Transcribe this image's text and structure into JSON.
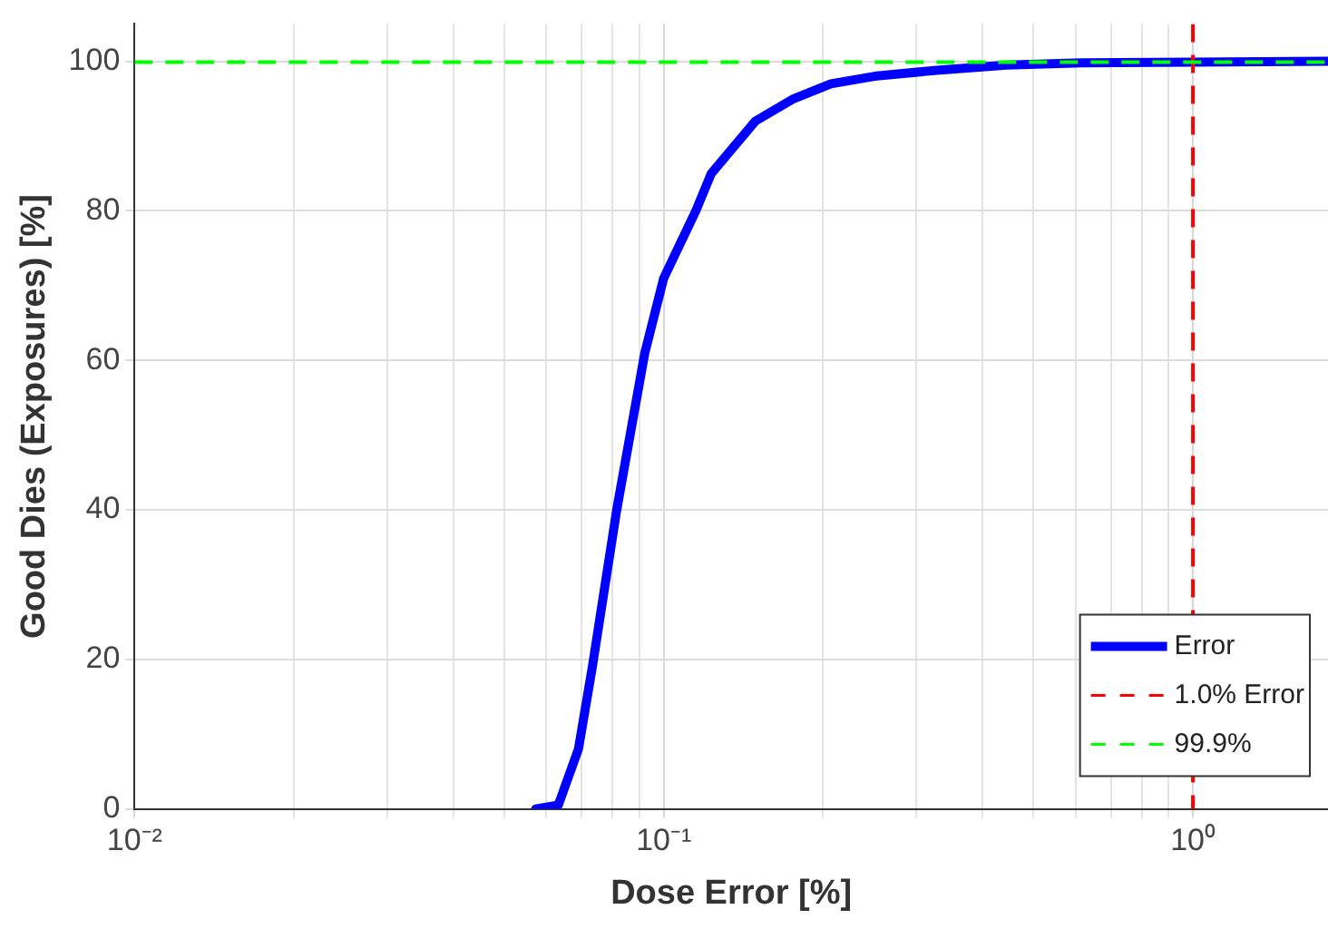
{
  "chart_data": {
    "type": "line",
    "xlabel": "Dose Error [%]",
    "ylabel": "Good Dies (Exposures) [%]",
    "log": "x",
    "xlim": [
      0.01,
      1.8
    ],
    "ylim": [
      0,
      105
    ],
    "xticks": [
      {
        "value": 0.01,
        "label": "10⁻²"
      },
      {
        "value": 0.02,
        "label": null
      },
      {
        "value": 0.03,
        "label": null
      },
      {
        "value": 0.04,
        "label": null
      },
      {
        "value": 0.05,
        "label": null
      },
      {
        "value": 0.06,
        "label": null
      },
      {
        "value": 0.07,
        "label": null
      },
      {
        "value": 0.08,
        "label": null
      },
      {
        "value": 0.09,
        "label": null
      },
      {
        "value": 0.1,
        "label": "10⁻¹"
      },
      {
        "value": 0.2,
        "label": null
      },
      {
        "value": 0.3,
        "label": null
      },
      {
        "value": 0.4,
        "label": null
      },
      {
        "value": 0.5,
        "label": null
      },
      {
        "value": 0.6,
        "label": null
      },
      {
        "value": 0.7,
        "label": null
      },
      {
        "value": 0.8,
        "label": null
      },
      {
        "value": 0.9,
        "label": null
      },
      {
        "value": 1,
        "label": "10⁰"
      }
    ],
    "yticks": [
      0,
      20,
      40,
      60,
      80,
      100
    ],
    "grid": true,
    "legend": "bottom right",
    "line_style": "solid",
    "marker": "none",
    "series": [
      {
        "name": "Error",
        "color": "#0000ff",
        "x": [
          0.0573,
          0.0632,
          0.069,
          0.0733,
          0.0815,
          0.0921,
          0.1,
          0.115,
          0.123,
          0.149,
          0.176,
          0.207,
          0.25,
          0.328,
          0.444,
          0.617,
          1,
          1.8
        ],
        "values": [
          0,
          0.5,
          8,
          19,
          40,
          61,
          71,
          80,
          85,
          92,
          95,
          97,
          98,
          98.8,
          99.5,
          99.8,
          99.9,
          100
        ]
      }
    ],
    "ref_lines": [
      {
        "axis": "x",
        "value": 1,
        "label": "1.0% Error",
        "color": "#ff0000",
        "line_style": "dashed"
      },
      {
        "axis": "y",
        "value": 99.9,
        "label": "99.9%",
        "color": "#00ff00",
        "line_style": "dashed"
      }
    ]
  }
}
